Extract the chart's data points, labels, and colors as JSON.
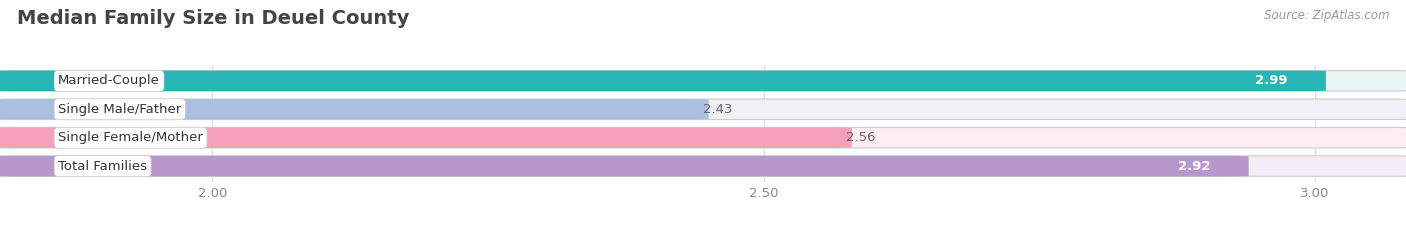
{
  "title": "Median Family Size in Deuel County",
  "source": "Source: ZipAtlas.com",
  "categories": [
    "Married-Couple",
    "Single Male/Father",
    "Single Female/Mother",
    "Total Families"
  ],
  "values": [
    2.99,
    2.43,
    2.56,
    2.92
  ],
  "bar_colors": [
    "#29b5b5",
    "#aabfe0",
    "#f4a0b8",
    "#b898cc"
  ],
  "bar_bg_colors": [
    "#eaf6f6",
    "#eef2f8",
    "#fceef3",
    "#f2eef8"
  ],
  "value_inside": [
    true,
    false,
    false,
    true
  ],
  "xlim_min": 1.82,
  "xlim_max": 3.07,
  "xticks": [
    2.0,
    2.5,
    3.0
  ],
  "xtick_labels": [
    "2.00",
    "2.50",
    "3.00"
  ],
  "label_fontsize": 9.5,
  "value_fontsize": 9.5,
  "title_fontsize": 14,
  "source_fontsize": 8.5,
  "background_color": "#ffffff",
  "grid_color": "#dddddd",
  "bar_height": 0.68,
  "bar_edge_color": "#cccccc"
}
